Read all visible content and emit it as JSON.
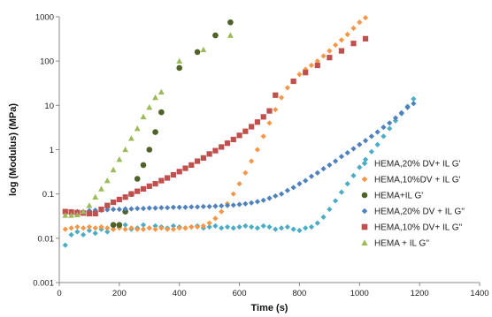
{
  "chart_data": {
    "type": "scatter",
    "title": "",
    "xlabel": "Time (s)",
    "ylabel": "log (Modulus) (MPa)",
    "xlim": [
      0,
      1400
    ],
    "ylim": [
      0.001,
      1000
    ],
    "y_scale": "log",
    "x_ticks": [
      "0",
      "200",
      "400",
      "600",
      "800",
      "1000",
      "1200",
      "1400"
    ],
    "y_ticks": [
      "0.001",
      "0.01",
      "0.1",
      "1",
      "10",
      "100",
      "1000"
    ],
    "grid": false,
    "legend_position": "right",
    "series": [
      {
        "name": "HEMA,20% DV+ IL G'",
        "color": "#4bacc6",
        "marker": "diamond",
        "x": [
          20,
          40,
          60,
          80,
          100,
          120,
          140,
          160,
          180,
          200,
          220,
          240,
          260,
          280,
          300,
          320,
          340,
          360,
          380,
          400,
          420,
          440,
          460,
          480,
          500,
          520,
          540,
          560,
          580,
          600,
          620,
          640,
          660,
          680,
          700,
          720,
          740,
          760,
          780,
          800,
          820,
          840,
          860,
          880,
          900,
          920,
          940,
          960,
          980,
          1000,
          1020,
          1040,
          1060,
          1080,
          1100,
          1120,
          1140,
          1160,
          1180
        ],
        "y": [
          0.007,
          0.012,
          0.014,
          0.012,
          0.015,
          0.013,
          0.016,
          0.014,
          0.016,
          0.018,
          0.02,
          0.016,
          0.017,
          0.02,
          0.017,
          0.019,
          0.018,
          0.017,
          0.019,
          0.018,
          0.017,
          0.018,
          0.019,
          0.017,
          0.018,
          0.019,
          0.017,
          0.018,
          0.017,
          0.018,
          0.019,
          0.018,
          0.017,
          0.019,
          0.018,
          0.016,
          0.017,
          0.018,
          0.016,
          0.015,
          0.017,
          0.018,
          0.022,
          0.03,
          0.045,
          0.07,
          0.11,
          0.17,
          0.26,
          0.4,
          0.6,
          0.9,
          1.3,
          2.0,
          3.0,
          4.5,
          6.5,
          9.5,
          14.0
        ]
      },
      {
        "name": "HEMA,10%DV + IL G'",
        "color": "#f79646",
        "marker": "diamond",
        "x": [
          20,
          40,
          60,
          80,
          100,
          120,
          140,
          160,
          180,
          200,
          220,
          240,
          260,
          280,
          300,
          320,
          340,
          360,
          380,
          400,
          420,
          440,
          460,
          480,
          500,
          520,
          540,
          560,
          580,
          600,
          620,
          640,
          660,
          680,
          700,
          720,
          740,
          760,
          780,
          800,
          820,
          840,
          860,
          880,
          900,
          920,
          940,
          960,
          980,
          1000,
          1020
        ],
        "y": [
          0.016,
          0.017,
          0.018,
          0.017,
          0.018,
          0.017,
          0.018,
          0.017,
          0.016,
          0.017,
          0.016,
          0.017,
          0.016,
          0.016,
          0.017,
          0.016,
          0.017,
          0.016,
          0.016,
          0.017,
          0.017,
          0.018,
          0.018,
          0.019,
          0.022,
          0.028,
          0.04,
          0.06,
          0.1,
          0.17,
          0.3,
          0.55,
          1.0,
          2.0,
          4.0,
          8.0,
          15.0,
          25.0,
          35.0,
          50.0,
          65.0,
          80.0,
          100.0,
          130.0,
          170.0,
          230.0,
          300.0,
          400.0,
          550.0,
          750.0,
          950.0
        ]
      },
      {
        "name": "HEMA+IL G'",
        "color": "#4f6228",
        "marker": "circle",
        "x": [
          180,
          200,
          220,
          240,
          260,
          280,
          300,
          320,
          340,
          400,
          460,
          520,
          570
        ],
        "y": [
          0.02,
          0.02,
          0.04,
          0.1,
          0.22,
          0.45,
          1.0,
          2.5,
          7.0,
          70.0,
          160.0,
          380.0,
          750.0
        ]
      },
      {
        "name": "HEMA,20% DV + IL G''",
        "color": "#4f81bd",
        "marker": "diamond",
        "x": [
          20,
          40,
          60,
          80,
          100,
          120,
          140,
          160,
          180,
          200,
          220,
          240,
          260,
          280,
          300,
          320,
          340,
          360,
          380,
          400,
          420,
          440,
          460,
          480,
          500,
          520,
          540,
          560,
          580,
          600,
          620,
          640,
          660,
          680,
          700,
          720,
          740,
          760,
          780,
          800,
          820,
          840,
          860,
          880,
          900,
          920,
          940,
          960,
          980,
          1000,
          1020,
          1040,
          1060,
          1080,
          1100,
          1120,
          1140,
          1160,
          1180
        ],
        "y": [
          0.04,
          0.04,
          0.04,
          0.04,
          0.042,
          0.043,
          0.043,
          0.044,
          0.045,
          0.045,
          0.046,
          0.046,
          0.047,
          0.047,
          0.048,
          0.048,
          0.049,
          0.049,
          0.05,
          0.05,
          0.05,
          0.051,
          0.051,
          0.052,
          0.052,
          0.053,
          0.054,
          0.055,
          0.056,
          0.058,
          0.06,
          0.063,
          0.067,
          0.072,
          0.08,
          0.09,
          0.1,
          0.12,
          0.14,
          0.17,
          0.2,
          0.25,
          0.3,
          0.37,
          0.45,
          0.55,
          0.7,
          0.85,
          1.05,
          1.3,
          1.6,
          2.0,
          2.5,
          3.2,
          4.0,
          5.2,
          6.8,
          9.0,
          11.0
        ]
      },
      {
        "name": "HEMA,10% DV+ IL G''",
        "color": "#c0504d",
        "marker": "square",
        "x": [
          20,
          40,
          60,
          80,
          100,
          120,
          140,
          160,
          180,
          200,
          220,
          240,
          260,
          280,
          300,
          320,
          340,
          360,
          380,
          400,
          420,
          440,
          460,
          480,
          500,
          520,
          540,
          560,
          580,
          600,
          620,
          640,
          660,
          680,
          700,
          720,
          780,
          820,
          860,
          900,
          940,
          980,
          1020
        ],
        "y": [
          0.04,
          0.039,
          0.038,
          0.037,
          0.036,
          0.036,
          0.045,
          0.055,
          0.065,
          0.075,
          0.085,
          0.1,
          0.115,
          0.13,
          0.15,
          0.17,
          0.2,
          0.23,
          0.27,
          0.32,
          0.38,
          0.45,
          0.55,
          0.65,
          0.8,
          0.95,
          1.15,
          1.4,
          1.7,
          2.1,
          2.6,
          3.3,
          4.2,
          5.5,
          7.5,
          17.0,
          35.0,
          55.0,
          80.0,
          120.0,
          170.0,
          250.0,
          320.0
        ]
      },
      {
        "name": "HEMA + IL G''",
        "color": "#9bbb59",
        "marker": "triangle",
        "x": [
          20,
          40,
          60,
          80,
          100,
          120,
          140,
          160,
          180,
          200,
          220,
          240,
          260,
          280,
          300,
          320,
          340,
          400,
          480,
          570
        ],
        "y": [
          0.033,
          0.033,
          0.034,
          0.04,
          0.055,
          0.085,
          0.13,
          0.2,
          0.35,
          0.6,
          1.0,
          1.8,
          3.0,
          5.5,
          9.0,
          15.0,
          20.0,
          100.0,
          180.0,
          380.0
        ]
      }
    ]
  }
}
